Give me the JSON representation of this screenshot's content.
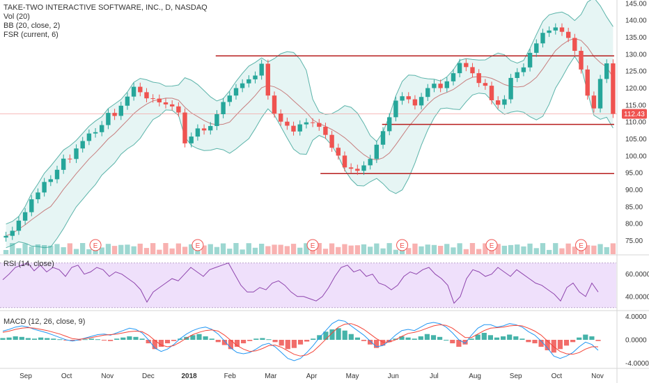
{
  "legend": {
    "main": "TAKE-TWO INTERACTIVE SOFTWARE, INC., D, NASDAQ",
    "vol": "Vol (20)",
    "bb": "BB (20, close, 2)",
    "fsr": "FSR (current, 6)",
    "rsi": "RSI (14, close)",
    "macd": "MACD (12, 26, close, 9)"
  },
  "colors": {
    "up": "#26a69a",
    "down": "#ef5350",
    "bb_fill": "#e0f2f1",
    "bb_line": "#5ab3a9",
    "basis": "#c77e7e",
    "resistance": "#b71c1c",
    "rsi_band": "#efe0fb",
    "rsi_line": "#8e44ad",
    "macd_line": "#2196f3",
    "signal_line": "#f44336",
    "price_tag": "#ef5350"
  },
  "chart_data": [
    {
      "type": "candlestick",
      "title": "TAKE-TWO INTERACTIVE SOFTWARE, INC., D, NASDAQ",
      "x_tick_labels": [
        "Sep",
        "Oct",
        "Nov",
        "Dec",
        "2018",
        "Feb",
        "Mar",
        "Apr",
        "May",
        "Jun",
        "Jul",
        "Aug",
        "Sep",
        "Oct",
        "Nov"
      ],
      "y_tick_labels": [
        "145.00",
        "140.00",
        "135.00",
        "130.00",
        "125.00",
        "120.00",
        "115.00",
        "110.00",
        "105.00",
        "100.00",
        "95.00",
        "90.00",
        "85.00",
        "80.00",
        "75.00"
      ],
      "ylim": [
        71,
        146
      ],
      "last_price": "112.43",
      "series": [
        {
          "name": "Close",
          "values": [
            76.4,
            77.9,
            80.9,
            83.4,
            87.2,
            89.2,
            92.3,
            93.1,
            95.9,
            99.2,
            99.1,
            102.2,
            104.4,
            106.6,
            107.0,
            109.1,
            112.7,
            111.8,
            114.8,
            117.5,
            120.4,
            118.8,
            117.0,
            116.9,
            115.8,
            115.2,
            114.6,
            112.8,
            103.7,
            105.7,
            108.1,
            107.5,
            108.8,
            112.3,
            115.9,
            117.8,
            120.0,
            121.4,
            122.6,
            123.7,
            127.2,
            117.8,
            112.5,
            110.1,
            108.9,
            107.2,
            109.3,
            109.9,
            109.7,
            108.6,
            106.2,
            102.4,
            100.1,
            96.6,
            96.2,
            95.6,
            97.2,
            99.1,
            103.3,
            107.3,
            111.4,
            116.3,
            117.6,
            116.7,
            114.9,
            117.4,
            120.0,
            121.3,
            120.0,
            122.0,
            124.4,
            127.4,
            126.2,
            124.4,
            121.5,
            120.7,
            116.4,
            115.1,
            116.7,
            123.0,
            124.7,
            126.1,
            130.4,
            133.2,
            136.3,
            137.0,
            137.9,
            136.6,
            134.8,
            131.0,
            125.5,
            117.8,
            114.0,
            122.7,
            127.3,
            112.4
          ]
        }
      ],
      "horizontal_levels": [
        129.5,
        109.3,
        94.8
      ],
      "volume_event_markers": [
        "E",
        "E",
        "E",
        "E",
        "E",
        "E"
      ]
    },
    {
      "type": "line",
      "title": "RSI (14, close)",
      "y_tick_labels": [
        "60.0000",
        "40.0000"
      ],
      "ylim": [
        28,
        76
      ],
      "band": [
        30,
        70
      ],
      "series": [
        {
          "name": "RSI",
          "values": [
            55,
            60,
            66,
            68,
            70,
            63,
            68,
            62,
            66,
            64,
            58,
            66,
            68,
            60,
            62,
            66,
            64,
            58,
            62,
            60,
            56,
            52,
            46,
            35,
            44,
            48,
            52,
            56,
            54,
            60,
            66,
            62,
            58,
            64,
            66,
            68,
            70,
            60,
            50,
            44,
            44,
            48,
            46,
            52,
            54,
            50,
            44,
            40,
            40,
            38,
            36,
            40,
            48,
            58,
            66,
            68,
            62,
            64,
            58,
            60,
            52,
            50,
            46,
            50,
            58,
            62,
            60,
            64,
            66,
            60,
            56,
            50,
            34,
            40,
            56,
            64,
            62,
            58,
            60,
            66,
            62,
            58,
            64,
            60,
            56,
            52,
            50,
            46,
            42,
            36,
            48,
            52,
            44,
            40,
            52,
            44
          ]
        }
      ]
    },
    {
      "type": "bar",
      "title": "MACD (12, 26, close, 9)",
      "y_tick_labels": [
        "4.0000",
        "0.0000",
        "-4.0000"
      ],
      "ylim": [
        -4.8,
        4.8
      ],
      "series": [
        {
          "name": "Histogram",
          "values": [
            0.3,
            0.4,
            0.6,
            0.5,
            0.3,
            0.2,
            0.4,
            0.3,
            0.2,
            0.1,
            -0.1,
            -0.2,
            -0.1,
            0.1,
            0.2,
            0.1,
            -0.1,
            -0.2,
            0.2,
            0.4,
            0.6,
            0.5,
            0.2,
            -0.6,
            -1.6,
            -1.2,
            -0.6,
            -0.2,
            0.2,
            0.5,
            0.8,
            1.0,
            0.6,
            0.2,
            -0.4,
            -0.9,
            -1.6,
            -1.2,
            -0.6,
            -0.2,
            0.2,
            0.3,
            0.1,
            -0.4,
            -1.0,
            -1.6,
            -1.4,
            -0.8,
            -0.3,
            0.2,
            0.8,
            1.4,
            1.8,
            2.0,
            1.6,
            1.0,
            0.4,
            -0.2,
            -0.8,
            -1.4,
            -1.0,
            -0.4,
            0.2,
            0.6,
            0.4,
            0.2,
            0.6,
            1.0,
            0.8,
            0.5,
            0.0,
            -0.6,
            -1.2,
            -0.8,
            0.2,
            0.9,
            1.2,
            0.8,
            0.4,
            0.6,
            0.9,
            0.6,
            0.2,
            -0.4,
            -0.6,
            -1.2,
            -1.8,
            -2.2,
            -1.6,
            -1.0,
            -0.4,
            0.4,
            0.9,
            0.6,
            -0.2
          ]
        },
        {
          "name": "MACD",
          "values": [
            1.5,
            1.8,
            2.2,
            2.4,
            2.2,
            1.8,
            1.5,
            1.2,
            0.8,
            0.4,
            0.0,
            -0.2,
            0.0,
            0.3,
            0.6,
            0.9,
            1.0,
            0.8,
            1.2,
            1.6,
            2.0,
            1.8,
            1.2,
            0.0,
            -1.4,
            -2.0,
            -1.6,
            -0.8,
            0.2,
            1.0,
            1.6,
            2.0,
            2.2,
            1.8,
            1.0,
            -0.2,
            -1.4,
            -2.2,
            -2.4,
            -2.2,
            -1.6,
            -0.9,
            -0.6,
            -1.2,
            -2.2,
            -3.2,
            -3.6,
            -3.2,
            -2.2,
            -1.0,
            0.4,
            1.6,
            2.8,
            3.4,
            3.2,
            2.4,
            1.6,
            0.8,
            -0.2,
            -1.2,
            -1.0,
            -0.2,
            0.8,
            1.6,
            1.8,
            1.6,
            2.2,
            2.8,
            3.0,
            2.8,
            2.2,
            1.2,
            0.0,
            -0.6,
            0.8,
            2.0,
            2.6,
            2.6,
            2.2,
            2.4,
            2.8,
            2.6,
            2.2,
            1.4,
            0.8,
            -0.2,
            -1.4,
            -2.8,
            -3.2,
            -2.8,
            -2.2,
            -1.2,
            -0.4,
            -0.8,
            -1.8
          ]
        },
        {
          "name": "Signal",
          "values": [
            1.3,
            1.5,
            1.8,
            2.0,
            2.1,
            2.0,
            1.8,
            1.6,
            1.3,
            1.0,
            0.6,
            0.2,
            0.1,
            0.2,
            0.4,
            0.6,
            0.8,
            0.9,
            1.0,
            1.2,
            1.4,
            1.5,
            1.4,
            0.8,
            -0.1,
            -0.9,
            -1.2,
            -1.0,
            -0.4,
            0.3,
            0.9,
            1.3,
            1.6,
            1.7,
            1.5,
            0.8,
            -0.1,
            -1.0,
            -1.6,
            -2.0,
            -1.9,
            -1.5,
            -1.0,
            -0.9,
            -1.3,
            -1.9,
            -2.5,
            -2.8,
            -2.6,
            -2.0,
            -1.0,
            0.1,
            1.2,
            2.2,
            2.7,
            2.8,
            2.4,
            1.8,
            1.0,
            0.2,
            -0.4,
            -0.4,
            0.0,
            0.6,
            1.1,
            1.3,
            1.6,
            2.0,
            2.4,
            2.6,
            2.5,
            2.0,
            1.2,
            0.4,
            0.4,
            1.0,
            1.6,
            2.0,
            2.1,
            2.2,
            2.4,
            2.5,
            2.4,
            2.0,
            1.5,
            0.8,
            -0.2,
            -1.2,
            -2.0,
            -2.4,
            -2.5,
            -2.2,
            -1.6,
            -1.2,
            -1.2
          ]
        }
      ]
    }
  ]
}
